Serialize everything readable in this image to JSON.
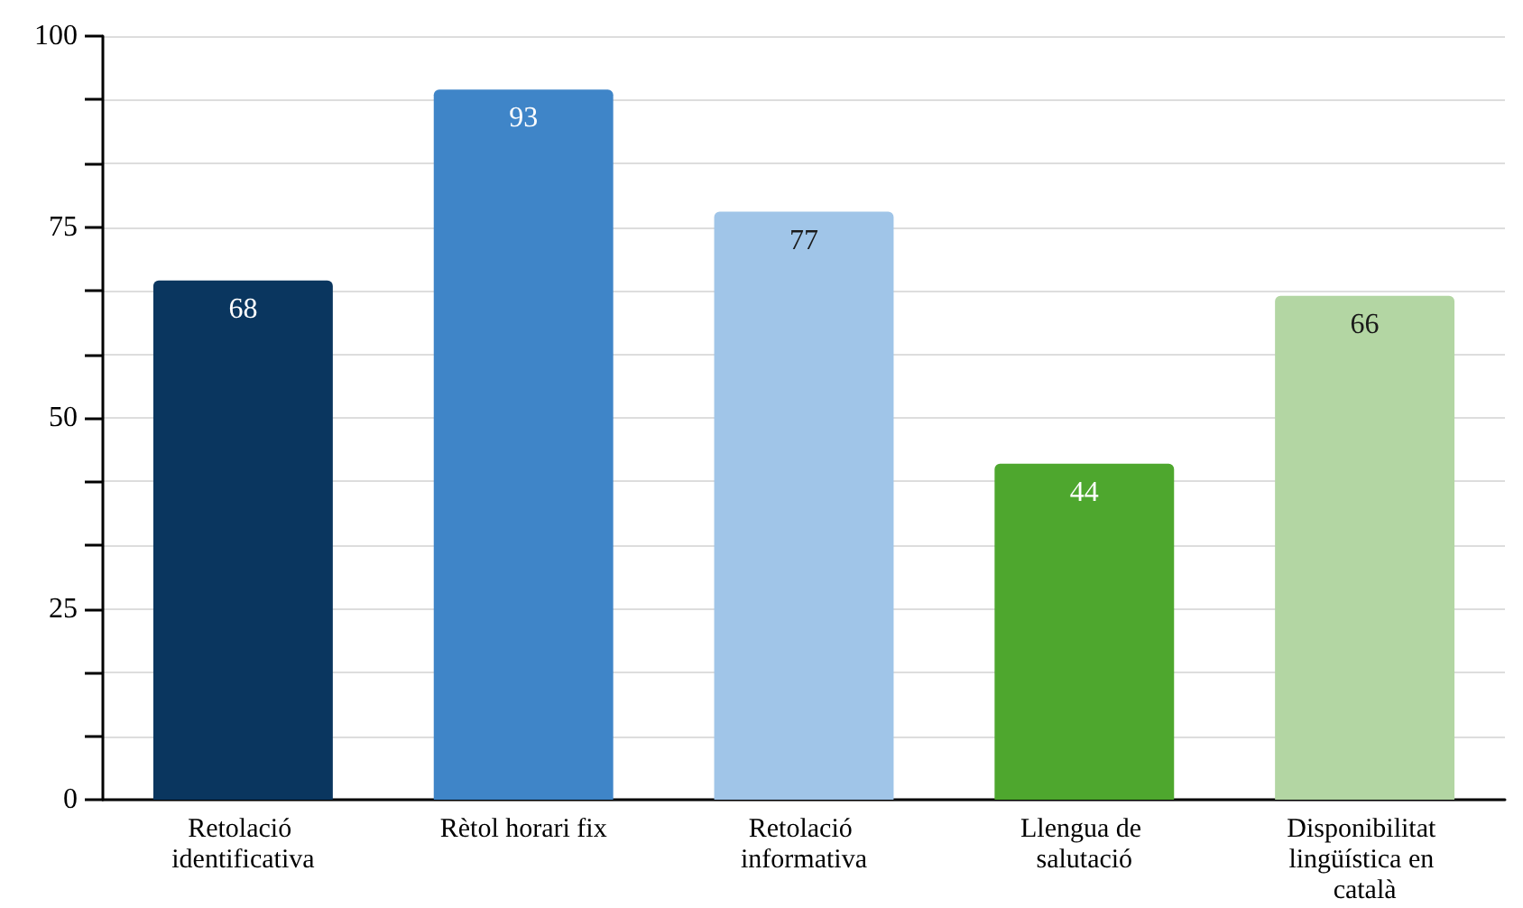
{
  "chart_data": {
    "type": "bar",
    "categories": [
      "Retolació identificativa",
      "Rètol horari fix",
      "Retolació informativa",
      "Llengua de salutació",
      "Disponibilitat lingüística en català"
    ],
    "values": [
      68,
      93,
      77,
      44,
      66
    ],
    "colors": [
      "#0a365f",
      "#3f85c8",
      "#a0c5e8",
      "#4ea72e",
      "#b3d6a3"
    ],
    "ylim": [
      0,
      100
    ],
    "yticks": [
      0,
      {
        "value": 8.33,
        "label": null
      },
      {
        "value": 16.67,
        "label": null
      },
      25,
      {
        "value": 33.33,
        "label": null
      },
      {
        "value": 41.67,
        "label": null
      },
      50,
      {
        "value": 58.33,
        "label": null
      },
      {
        "value": 66.67,
        "label": null
      },
      75,
      {
        "value": 83.33,
        "label": null
      },
      {
        "value": 91.67,
        "label": null
      },
      100
    ],
    "grid": true,
    "data_labels": true
  }
}
